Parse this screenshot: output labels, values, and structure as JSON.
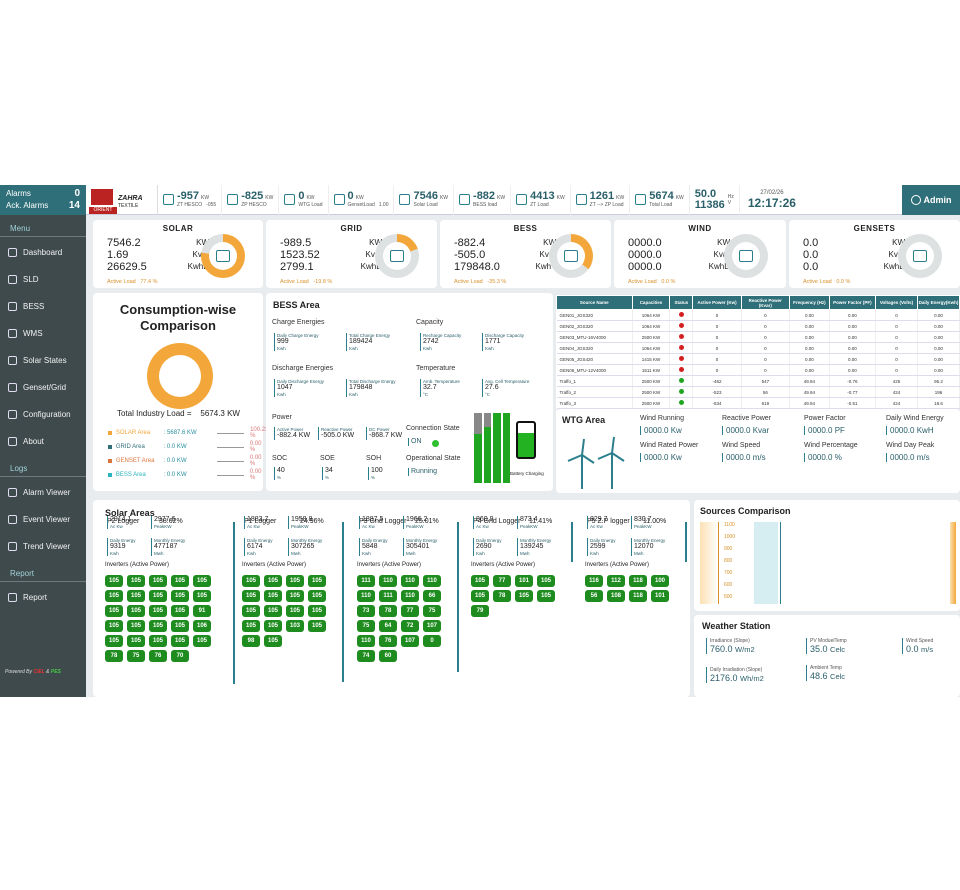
{
  "sidebar": {
    "alarms_label": "Alarms",
    "alarms_value": "0",
    "ack_label": "Ack. Alarms",
    "ack_value": "14",
    "menu_h": "Menu",
    "menu": [
      "Dashboard",
      "SLD",
      "BESS",
      "WMS",
      "Solar States",
      "Genset/Grid",
      "Configuration",
      "About"
    ],
    "logs_h": "Logs",
    "logs": [
      "Alarm Viewer",
      "Event Viewer",
      "Trend Viewer"
    ],
    "report_h": "Report",
    "report": [
      "Report"
    ],
    "powered": "Powered By",
    "powered_r": "CIEL",
    "powered_amp": "&",
    "powered_g": "PES"
  },
  "logo": {
    "zahra": "ZAHRA",
    "textile": "TEXTILE",
    "orient": "ORIENT"
  },
  "topbar": [
    {
      "v": "-957",
      "u": "KW",
      "l": "ZT HESCO",
      "v2": "-055"
    },
    {
      "v": "-825",
      "u": "KW",
      "l": "ZP HESCO"
    },
    {
      "v": "0",
      "u": "KW",
      "l": "WTG Load"
    },
    {
      "v": "0",
      "u": "KW",
      "l": "GensetLoad",
      "v2": "1.00"
    },
    {
      "v": "7546",
      "u": "KW",
      "l": "Solar Load"
    },
    {
      "v": "-882",
      "u": "KW",
      "l": "BESS load"
    },
    {
      "v": "4413",
      "u": "KW",
      "l": "ZT Load"
    },
    {
      "v": "1261",
      "u": "KW",
      "l": "ZT --> ZP Load"
    },
    {
      "v": "5674",
      "u": "KW",
      "l": "Total Load"
    }
  ],
  "freq": {
    "v": "50.0",
    "u": "Hz",
    "v2": "11386",
    "u2": "V"
  },
  "datetime": {
    "date": "27/02/26",
    "time": "12:17:26"
  },
  "admin": "Admin",
  "summary": [
    {
      "title": "SOLAR",
      "vals": [
        [
          "7546.2",
          "KW"
        ],
        [
          "1.69",
          "Kvar"
        ],
        [
          "26629.5",
          "KwhD"
        ]
      ],
      "al": "Active Load",
      "ap": "77.4 %"
    },
    {
      "title": "GRID",
      "vals": [
        [
          "-989.5",
          "KW"
        ],
        [
          "1523.52",
          "Kvar"
        ],
        [
          "2799.1",
          "KwhD"
        ]
      ],
      "al": "Active Load",
      "ap": "-19.8 %"
    },
    {
      "title": "BESS",
      "vals": [
        [
          "-882.4",
          "KW"
        ],
        [
          "-505.0",
          "Kvar"
        ],
        [
          "179848.0",
          "KwhT"
        ]
      ],
      "al": "Active Load",
      "ap": "-35.3 %"
    },
    {
      "title": "WIND",
      "vals": [
        [
          "0000.0",
          "KW"
        ],
        [
          "0000.0",
          "Kvar"
        ],
        [
          "0000.0",
          "KwhD"
        ]
      ],
      "al": "Active Load",
      "ap": "0.0 %"
    },
    {
      "title": "GENSETS",
      "vals": [
        [
          "0.0",
          "KW"
        ],
        [
          "0.0",
          "Kvar"
        ],
        [
          "0.0",
          "KwhD"
        ]
      ],
      "al": "Active Load",
      "ap": "0.0 %"
    }
  ],
  "consumption": {
    "title": "Consumption-wise Comparison",
    "total_label": "Total Industry Load =",
    "total_value": "5674.3 KW",
    "rows": [
      {
        "name": "SOLAR Area",
        "kw": ": 5687.6 KW",
        "pc": "100.23 %",
        "color": "#f3a73b"
      },
      {
        "name": "GRID Area",
        "kw": ": 0.0 KW",
        "pc": "0.00 %",
        "color": "#2f6f79"
      },
      {
        "name": "GENSET Area",
        "kw": ": 0.0 KW",
        "pc": "0.00 %",
        "color": "#d9743a"
      },
      {
        "name": "BESS Area",
        "kw": ": 0.0 KW",
        "pc": "0.00 %",
        "color": "#2bb3c0"
      }
    ]
  },
  "bess": {
    "title": "BESS Area",
    "charge_h": "Charge Energies",
    "capacity_h": "Capacity",
    "discharge_h": "Discharge Energies",
    "temp_h": "Temperature",
    "power_h": "Power",
    "conn_h": "Connection State",
    "conn_v": "ON",
    "op_h": "Operational State",
    "op_v": "Running",
    "soc": "SOC",
    "soc_v": "40",
    "soe": "SOE",
    "soe_v": "34",
    "soh": "SOH",
    "soh_v": "100",
    "pct": "%",
    "battery": "Battery Charging",
    "daily_charge_l": "Daily Charge Energy",
    "daily_charge_v": "999",
    "total_charge_l": "Total Charge Energy",
    "total_charge_v": "189424",
    "rech_l": "Recharge Capacity",
    "rech_v": "2742",
    "disc_cap_l": "Discharge Capacity",
    "disc_cap_v": "1771",
    "daily_disc_l": "Daily Discharge Energy",
    "daily_disc_v": "1047",
    "total_disc_l": "Total Discharge Energy",
    "total_disc_v": "179848",
    "amb_l": "Amb. Temperature",
    "amb_v": "32.7",
    "cell_l": "Avg. Cell Temperature",
    "cell_v": "27.6",
    "ap_l": "Active Power",
    "ap_v": "-882.4 KW",
    "rp_l": "Reactive Power",
    "rp_v": "-505.0 KW",
    "dc_l": "DC Power",
    "dc_v": "-868.7 KW",
    "kwh": "Kwh",
    "deg": "°C"
  },
  "table": {
    "headers": [
      "Source Name",
      "Capacities",
      "Status",
      "Active Power (Kw)",
      "Reactive Power (Kvar)",
      "Frequency (Hz)",
      "Power Factor (PF)",
      "Voltages (Volts)",
      "Daily Energy(Kwh)"
    ],
    "rows": [
      [
        "GEN01_JGS320",
        "1064 KW",
        "red",
        "0",
        "0",
        "0.00",
        "0.00",
        "0",
        "0.00"
      ],
      [
        "GEN02_JGS320",
        "1064 KW",
        "red",
        "0",
        "0",
        "0.00",
        "0.00",
        "0",
        "0.00"
      ],
      [
        "GEN03_MTU-16V4000",
        "2500 KW",
        "red",
        "0",
        "0",
        "0.00",
        "0.00",
        "0",
        "0.00"
      ],
      [
        "GEN04_JGS320",
        "1064 KW",
        "red",
        "0",
        "0",
        "0.00",
        "0.00",
        "0",
        "0.00"
      ],
      [
        "GEN05_JGS420",
        "1415 KW",
        "red",
        "0",
        "0",
        "0.00",
        "0.00",
        "0",
        "0.00"
      ],
      [
        "GEN06_MTU-12V4000",
        "1511 KW",
        "red",
        "0",
        "0",
        "0.00",
        "0.00",
        "0",
        "0.00"
      ],
      [
        "Traffo_1",
        "2500 KW",
        "green",
        "-462",
        "547",
        "49.94",
        "-0.76",
        "425",
        "95.2"
      ],
      [
        "Traffo_2",
        "2500 KW",
        "green",
        "-523",
        "56",
        "49.94",
        "-0.77",
        "424",
        "196"
      ],
      [
        "Traffo_3",
        "2500 KW",
        "green",
        "-534",
        "619",
        "49.94",
        "-0.51",
        "424",
        "18.6"
      ]
    ]
  },
  "wtg": {
    "title": "WTG Area",
    "items": [
      {
        "l": "Wind Running",
        "v": "0000.0",
        "u": "Kw"
      },
      {
        "l": "Reactive Power",
        "v": "0000.0",
        "u": "Kvar"
      },
      {
        "l": "Power Factor",
        "v": "0000.0",
        "u": "PF"
      },
      {
        "l": "Daily Wind Energy",
        "v": "0000.0",
        "u": "KwH"
      },
      {
        "l": "Wind Rated Power",
        "v": "0000.0",
        "u": "Kw"
      },
      {
        "l": "Wind Speed",
        "v": "0000.0",
        "u": "m/s"
      },
      {
        "l": "Wind Percentage",
        "v": "0000.0",
        "u": "%"
      },
      {
        "l": "Wind Day Peak",
        "v": "0000.0",
        "u": "m/s"
      }
    ]
  },
  "solar": {
    "title": "Solar Areas",
    "inv_label": "Inverters (Active Power)",
    "loggers": [
      {
        "name": "P2 Logger",
        "pct": "38.62%",
        "ac": "2914.1",
        "ac_l": "Ac Kw",
        "pk": "2977.6",
        "pk_l": "PeakKW",
        "de": "9319",
        "de_l": "Daily Energy",
        "de_u": "Kwh",
        "me": "477187",
        "me_l": "Monthly Energy",
        "me_u": "Mwh",
        "inv": [
          "105",
          "105",
          "105",
          "105",
          "105",
          "105",
          "105",
          "105",
          "105",
          "105",
          "105",
          "105",
          "105",
          "105",
          "91",
          "105",
          "105",
          "105",
          "105",
          "106",
          "105",
          "105",
          "105",
          "105",
          "105",
          "78",
          "75",
          "76",
          "70"
        ]
      },
      {
        "name": "P1 Logger",
        "pct": "24.96%",
        "ac": "1883.7",
        "ac_l": "Ac Kw",
        "pk": "1958.8",
        "pk_l": "PeakKW",
        "de": "6174",
        "de_l": "Daily Energy",
        "de_u": "Kwh",
        "me": "307265",
        "me_l": "Monthly Energy",
        "me_u": "Mwh",
        "inv": [
          "105",
          "105",
          "105",
          "105",
          "105",
          "105",
          "105",
          "105",
          "105",
          "105",
          "105",
          "105",
          "105",
          "105",
          "103",
          "105",
          "98",
          "105"
        ]
      },
      {
        "name": "P3 Gnd Logger",
        "pct": "25.01%",
        "ac": "1887.5",
        "ac_l": "Ac Kw",
        "pk": "1966.2",
        "pk_l": "PeakKW",
        "de": "5848",
        "de_l": "Daily Energy",
        "de_u": "Kwh",
        "me": "305401",
        "me_l": "Monthly Energy",
        "me_u": "Mwh",
        "inv": [
          "111",
          "110",
          "110",
          "110",
          "110",
          "111",
          "110",
          "66",
          "73",
          "78",
          "77",
          "75",
          "75",
          "64",
          "72",
          "107",
          "110",
          "76",
          "107",
          "0",
          "74",
          "60"
        ]
      },
      {
        "name": "P4 Gnd Logger",
        "pct": "11.41%",
        "ac": "860.9",
        "ac_l": "Ac Kw",
        "pk": "873.4",
        "pk_l": "PeakKW",
        "de": "2690",
        "de_l": "Daily Energy",
        "de_u": "Kwh",
        "me": "139245",
        "me_l": "Monthly Energy",
        "me_u": "Mwh",
        "inv": [
          "105",
          "77",
          "101",
          "105",
          "105",
          "78",
          "105",
          "105",
          "79"
        ]
      },
      {
        "name": "P5 Z.P logger",
        "pct": "11.00%",
        "ac": "829.7",
        "ac_l": "Ac Kw",
        "pk": "830.7",
        "pk_l": "PeakKW",
        "de": "2599",
        "de_l": "Daily Energy",
        "de_u": "Kwh",
        "me": "12070",
        "me_l": "Monthly Energy",
        "me_u": "Mwh",
        "inv": [
          "116",
          "112",
          "118",
          "100",
          "56",
          "108",
          "118",
          "101"
        ]
      }
    ]
  },
  "sources": {
    "title": "Sources Comparison",
    "ticks": [
      "1100",
      "1000",
      "900",
      "800",
      "700",
      "600",
      "500"
    ]
  },
  "weather": {
    "title": "Weather Station",
    "irr_l": "Irradiance (Slope)",
    "irr_v": "760.0",
    "irr_u": "W/m2",
    "pv_l": "PV ModuelTemp",
    "pv_v": "35.0",
    "pv_u": "Celc",
    "ws_l": "Wind Speed",
    "ws_v": "0.0",
    "ws_u": "m/s",
    "di_l": "Daily Irradiation (Slope)",
    "di_v": "2176.0",
    "di_u": "Wh/m2",
    "at_l": "Ambient Temp",
    "at_v": "48.6",
    "at_u": "Celc"
  }
}
